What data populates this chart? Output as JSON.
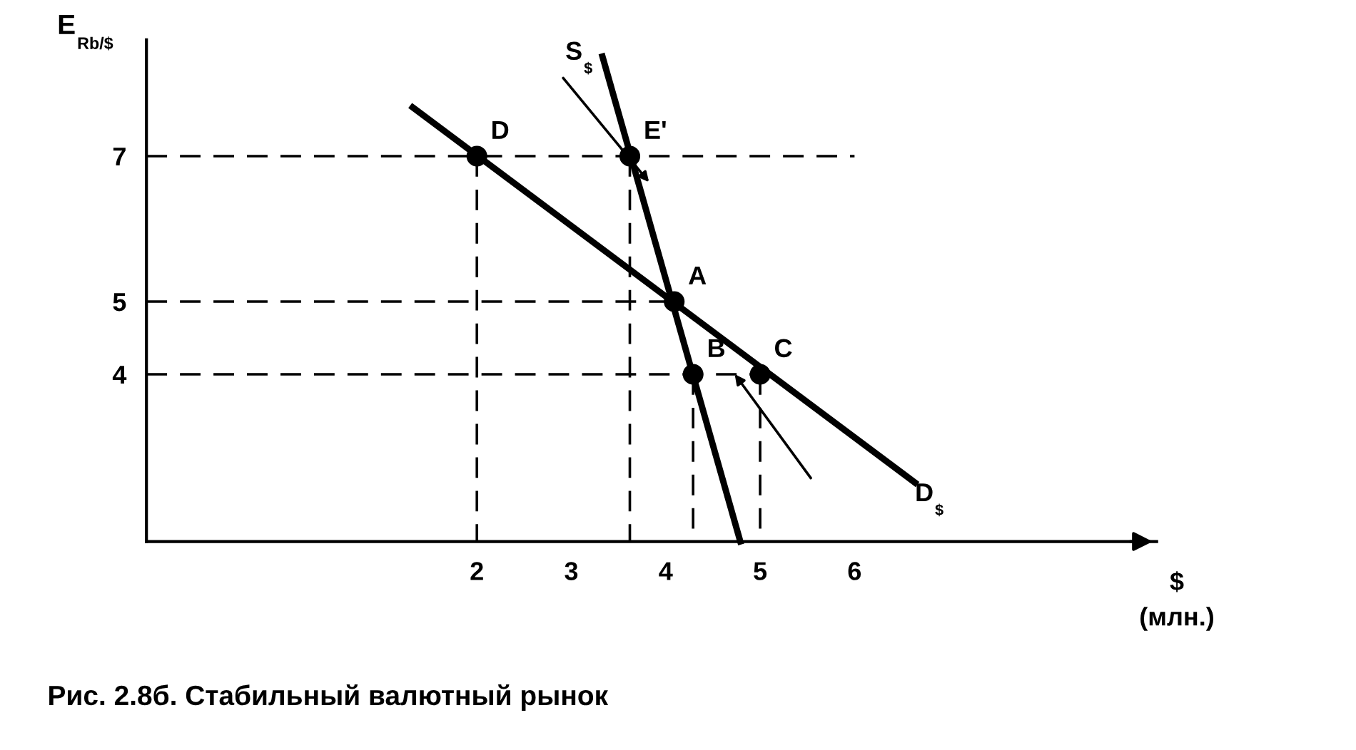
{
  "chart_data": {
    "type": "line",
    "title": "Рис. 2.8б. Стабильный валютный рынок",
    "xlabel": "$\n(млн.)",
    "ylabel": "E$_{Rb/$}$",
    "xlim": [
      -1.5,
      9.2
    ],
    "ylim": [
      1.7,
      8.6
    ],
    "xticks": [
      2,
      3,
      4,
      5,
      6
    ],
    "yticks": [
      4,
      5,
      7
    ],
    "grid": false,
    "legend": false,
    "series": [
      {
        "name": "D$_{$}$",
        "color": "#000000",
        "line_style": "solid",
        "marker": "none",
        "x": [
          1.32,
          6.64
        ],
        "values": [
          7.67,
          2.51
        ]
      },
      {
        "name": "S$_{$}$",
        "color": "#000000",
        "line_style": "solid",
        "marker": "none",
        "x": [
          3.33,
          4.79
        ],
        "values": [
          8.37,
          1.7
        ]
      },
      {
        "color": "#000000",
        "line_style": "dashed",
        "marker": "none",
        "x": [
          -1.5,
          6
        ],
        "values": [
          7,
          7
        ]
      },
      {
        "color": "#000000",
        "line_style": "dashed",
        "marker": "none",
        "x": [
          -1.5,
          4.09
        ],
        "values": [
          5,
          5
        ]
      },
      {
        "color": "#000000",
        "line_style": "dashed",
        "marker": "none",
        "x": [
          -1.5,
          5
        ],
        "values": [
          4,
          4
        ]
      },
      {
        "color": "#000000",
        "line_style": "dashed",
        "marker": "none",
        "x": [
          2,
          2
        ],
        "values": [
          7,
          1.7
        ]
      },
      {
        "color": "#000000",
        "line_style": "dashed",
        "marker": "none",
        "x": [
          3.62,
          3.62
        ],
        "values": [
          7,
          1.7
        ]
      },
      {
        "color": "#000000",
        "line_style": "dashed",
        "marker": "none",
        "x": [
          4.29,
          4.29
        ],
        "values": [
          4,
          1.7
        ]
      },
      {
        "color": "#000000",
        "line_style": "dashed",
        "marker": "none",
        "x": [
          5,
          5
        ],
        "values": [
          4,
          1.7
        ]
      },
      {
        "type": "scatter",
        "color": "#000000",
        "marker": "circle",
        "x": [
          2,
          3.62,
          4.09,
          4.29,
          5
        ],
        "values": [
          7,
          7,
          5,
          4,
          4
        ]
      }
    ],
    "annotations": [
      {
        "text": "D",
        "x": 2,
        "y": 7
      },
      {
        "text": "E'",
        "x": 3.62,
        "y": 7
      },
      {
        "text": "A",
        "x": 4.09,
        "y": 5
      },
      {
        "text": "B",
        "x": 4.29,
        "y": 4
      },
      {
        "text": "C",
        "x": 5,
        "y": 4
      }
    ]
  }
}
